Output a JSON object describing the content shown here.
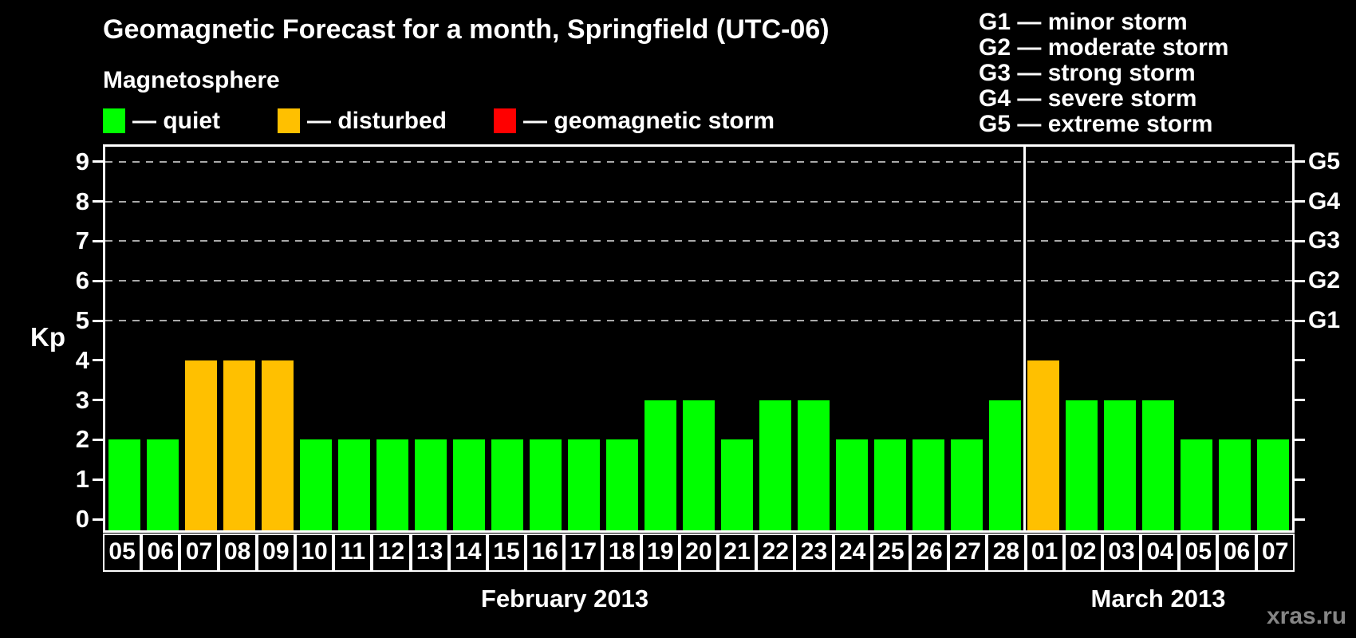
{
  "title": "Geomagnetic Forecast for a month, Springfield (UTC-06)",
  "legend": {
    "heading": "Magnetosphere",
    "items": [
      {
        "label": "— quiet",
        "color": "#00FF00",
        "status": "quiet"
      },
      {
        "label": "— disturbed",
        "color": "#FFC000",
        "status": "disturbed"
      },
      {
        "label": "— geomagnetic storm",
        "color": "#FF0000",
        "status": "storm"
      }
    ]
  },
  "g_scale_legend": [
    "G1 — minor storm",
    "G2 — moderate storm",
    "G3 — strong storm",
    "G4 — severe storm",
    "G5 — extreme storm"
  ],
  "watermark": "xras.ru",
  "chart_data": {
    "type": "bar",
    "title": "Geomagnetic Forecast for a month, Springfield (UTC-06)",
    "ylabel": "Kp",
    "ylim": [
      0,
      9
    ],
    "yticks": [
      0,
      1,
      2,
      3,
      4,
      5,
      6,
      7,
      8,
      9
    ],
    "grid_levels": [
      5,
      6,
      7,
      8,
      9
    ],
    "grid_on": true,
    "right_axis": [
      {
        "kp": 5,
        "label": "G1"
      },
      {
        "kp": 6,
        "label": "G2"
      },
      {
        "kp": 7,
        "label": "G3"
      },
      {
        "kp": 8,
        "label": "G4"
      },
      {
        "kp": 9,
        "label": "G5"
      }
    ],
    "colors": {
      "quiet": "#00FF00",
      "disturbed": "#FFC000",
      "storm": "#FF0000"
    },
    "months": [
      {
        "label": "February 2013",
        "values": [
          {
            "day": "05",
            "kp": 2,
            "status": "quiet"
          },
          {
            "day": "06",
            "kp": 2,
            "status": "quiet"
          },
          {
            "day": "07",
            "kp": 4,
            "status": "disturbed"
          },
          {
            "day": "08",
            "kp": 4,
            "status": "disturbed"
          },
          {
            "day": "09",
            "kp": 4,
            "status": "disturbed"
          },
          {
            "day": "10",
            "kp": 2,
            "status": "quiet"
          },
          {
            "day": "11",
            "kp": 2,
            "status": "quiet"
          },
          {
            "day": "12",
            "kp": 2,
            "status": "quiet"
          },
          {
            "day": "13",
            "kp": 2,
            "status": "quiet"
          },
          {
            "day": "14",
            "kp": 2,
            "status": "quiet"
          },
          {
            "day": "15",
            "kp": 2,
            "status": "quiet"
          },
          {
            "day": "16",
            "kp": 2,
            "status": "quiet"
          },
          {
            "day": "17",
            "kp": 2,
            "status": "quiet"
          },
          {
            "day": "18",
            "kp": 2,
            "status": "quiet"
          },
          {
            "day": "19",
            "kp": 3,
            "status": "quiet"
          },
          {
            "day": "20",
            "kp": 3,
            "status": "quiet"
          },
          {
            "day": "21",
            "kp": 2,
            "status": "quiet"
          },
          {
            "day": "22",
            "kp": 3,
            "status": "quiet"
          },
          {
            "day": "23",
            "kp": 3,
            "status": "quiet"
          },
          {
            "day": "24",
            "kp": 2,
            "status": "quiet"
          },
          {
            "day": "25",
            "kp": 2,
            "status": "quiet"
          },
          {
            "day": "26",
            "kp": 2,
            "status": "quiet"
          },
          {
            "day": "27",
            "kp": 2,
            "status": "quiet"
          },
          {
            "day": "28",
            "kp": 3,
            "status": "quiet"
          }
        ]
      },
      {
        "label": "March 2013",
        "values": [
          {
            "day": "01",
            "kp": 4,
            "status": "disturbed"
          },
          {
            "day": "02",
            "kp": 3,
            "status": "quiet"
          },
          {
            "day": "03",
            "kp": 3,
            "status": "quiet"
          },
          {
            "day": "04",
            "kp": 3,
            "status": "quiet"
          },
          {
            "day": "05",
            "kp": 2,
            "status": "quiet"
          },
          {
            "day": "06",
            "kp": 2,
            "status": "quiet"
          },
          {
            "day": "07",
            "kp": 2,
            "status": "quiet"
          }
        ]
      }
    ]
  }
}
